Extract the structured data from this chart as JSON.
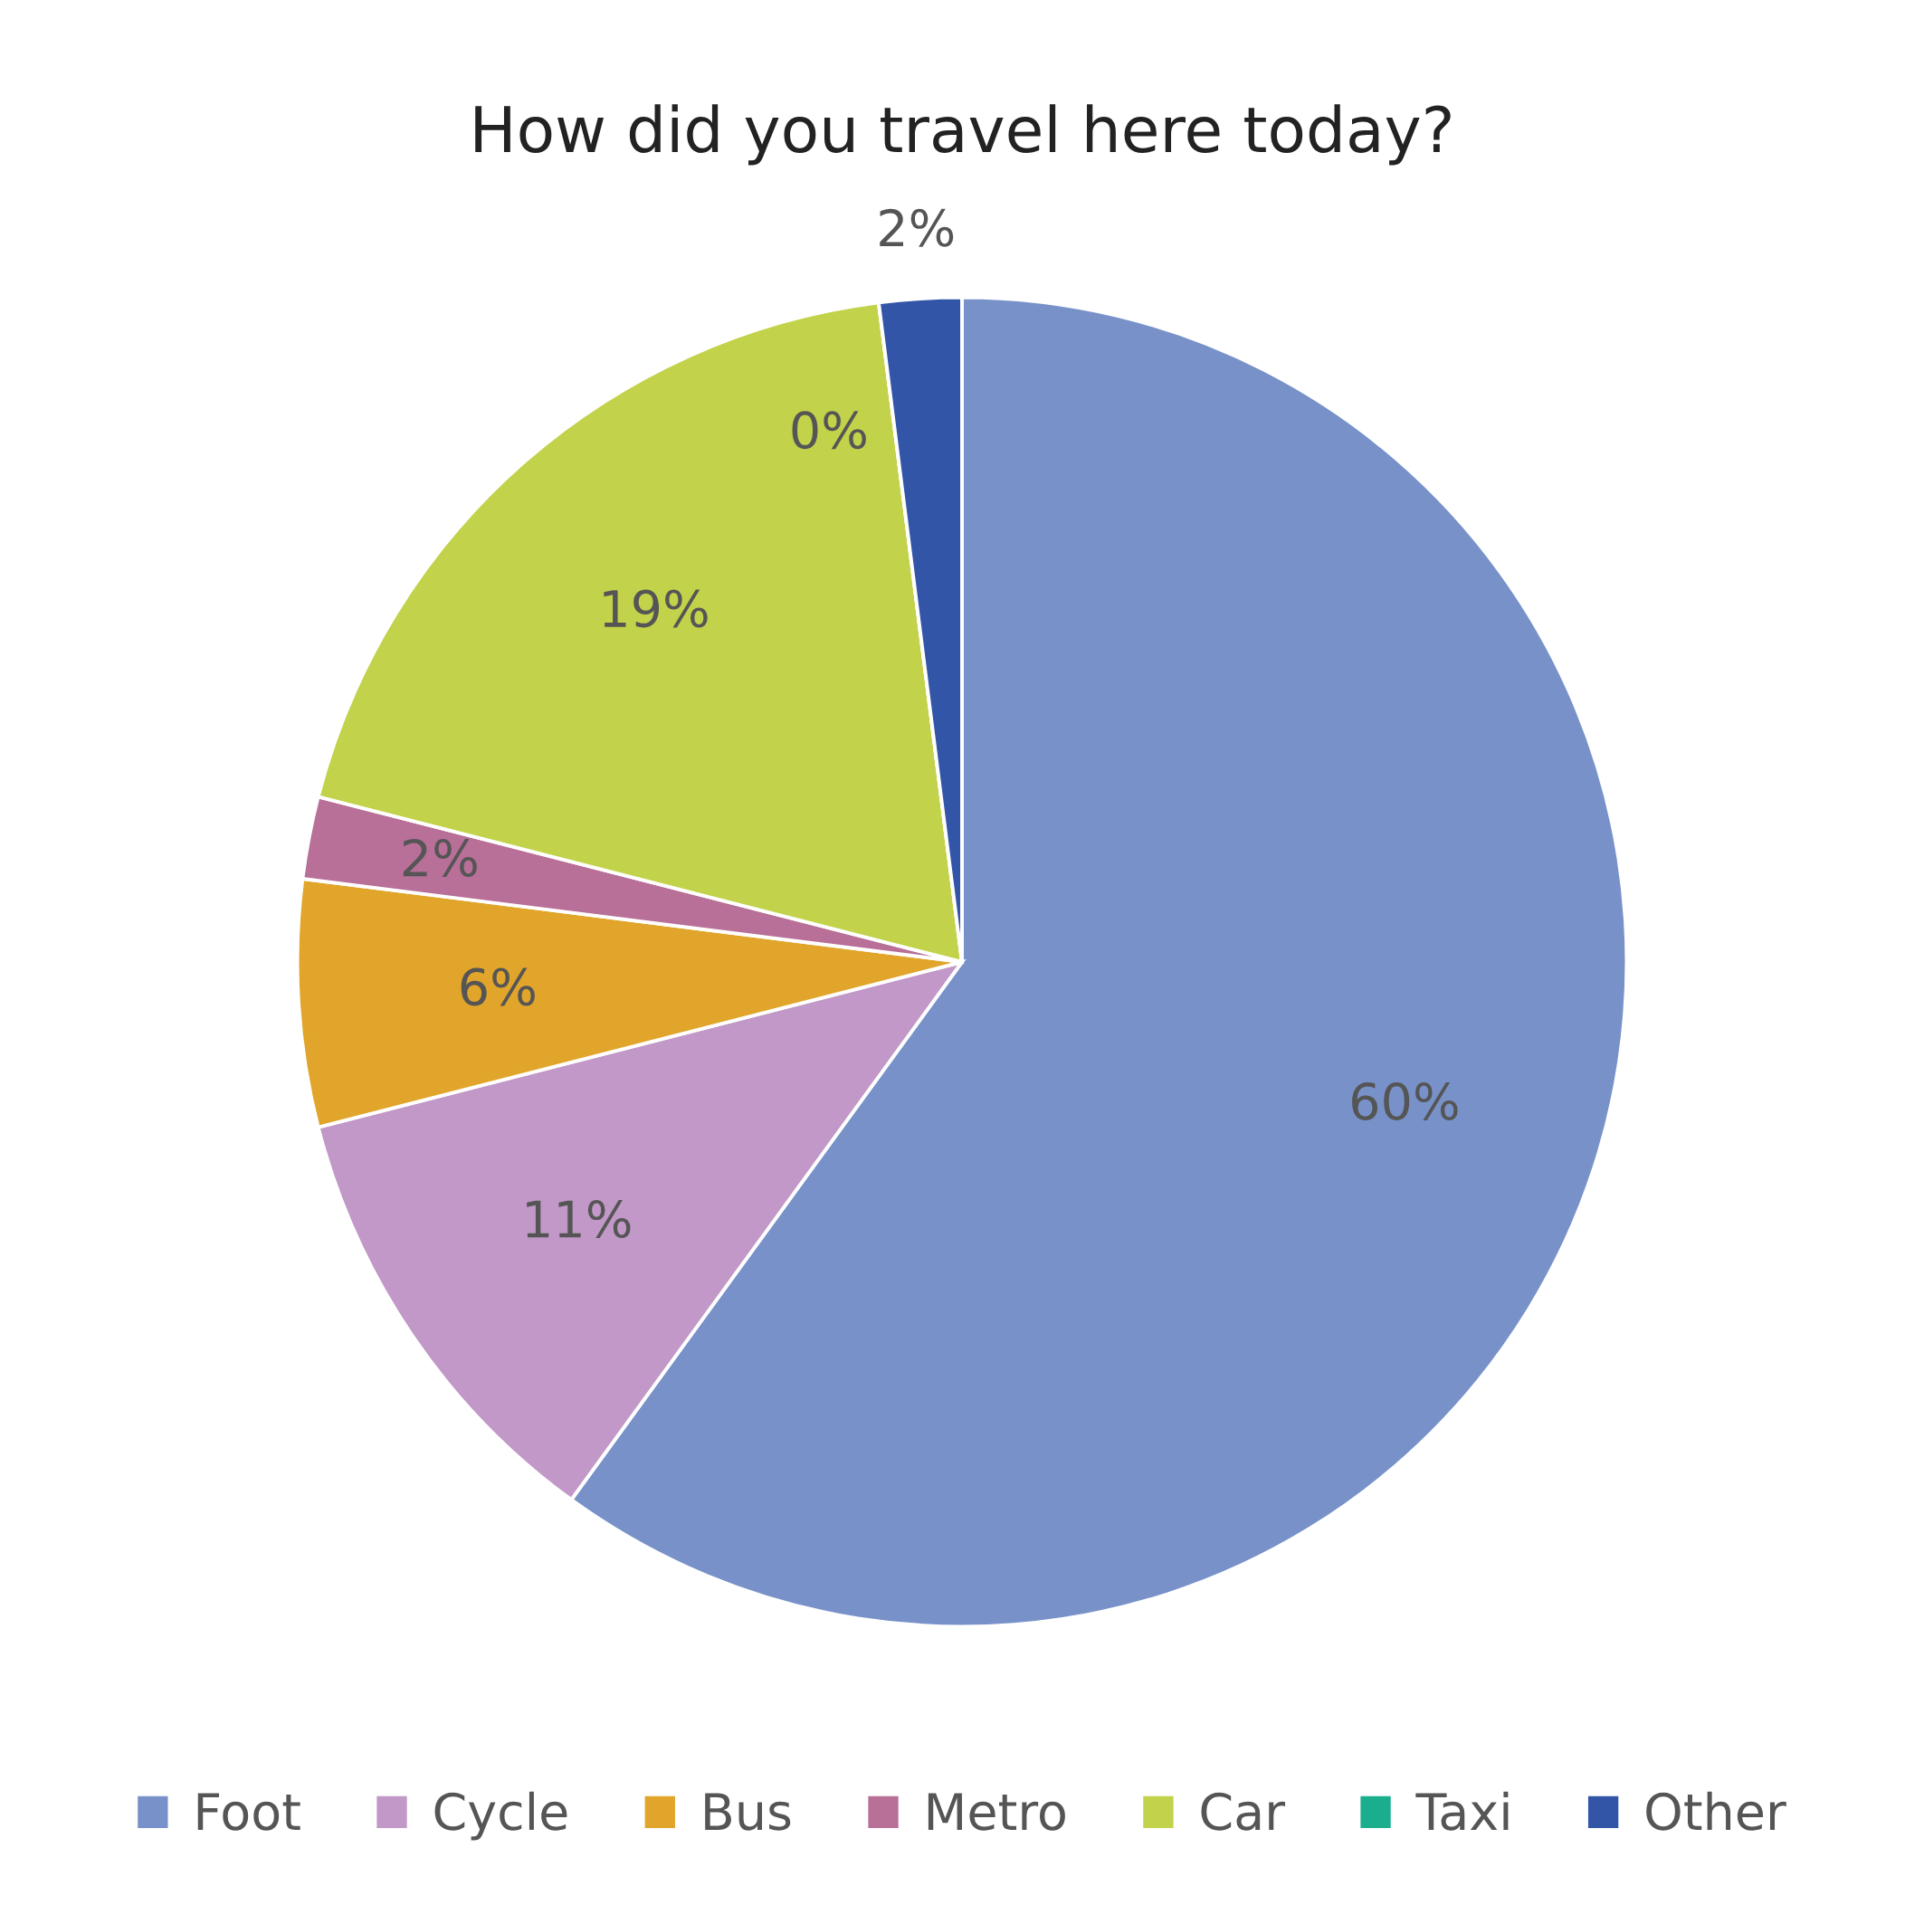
{
  "chart_data": {
    "type": "pie",
    "title": "How did you travel here today?",
    "categories": [
      "Foot",
      "Cycle",
      "Bus",
      "Metro",
      "Car",
      "Taxi",
      "Other"
    ],
    "values": [
      60,
      11,
      6,
      2,
      19,
      0,
      2
    ],
    "colors": [
      "#7892c9",
      "#c198c7",
      "#e0a52a",
      "#b86f98",
      "#c2d24a",
      "#1aae8e",
      "#3255a8"
    ],
    "value_labels": [
      "60%",
      "11%",
      "6%",
      "2%",
      "19%",
      "0%",
      "2%"
    ],
    "legend": "bottom"
  }
}
